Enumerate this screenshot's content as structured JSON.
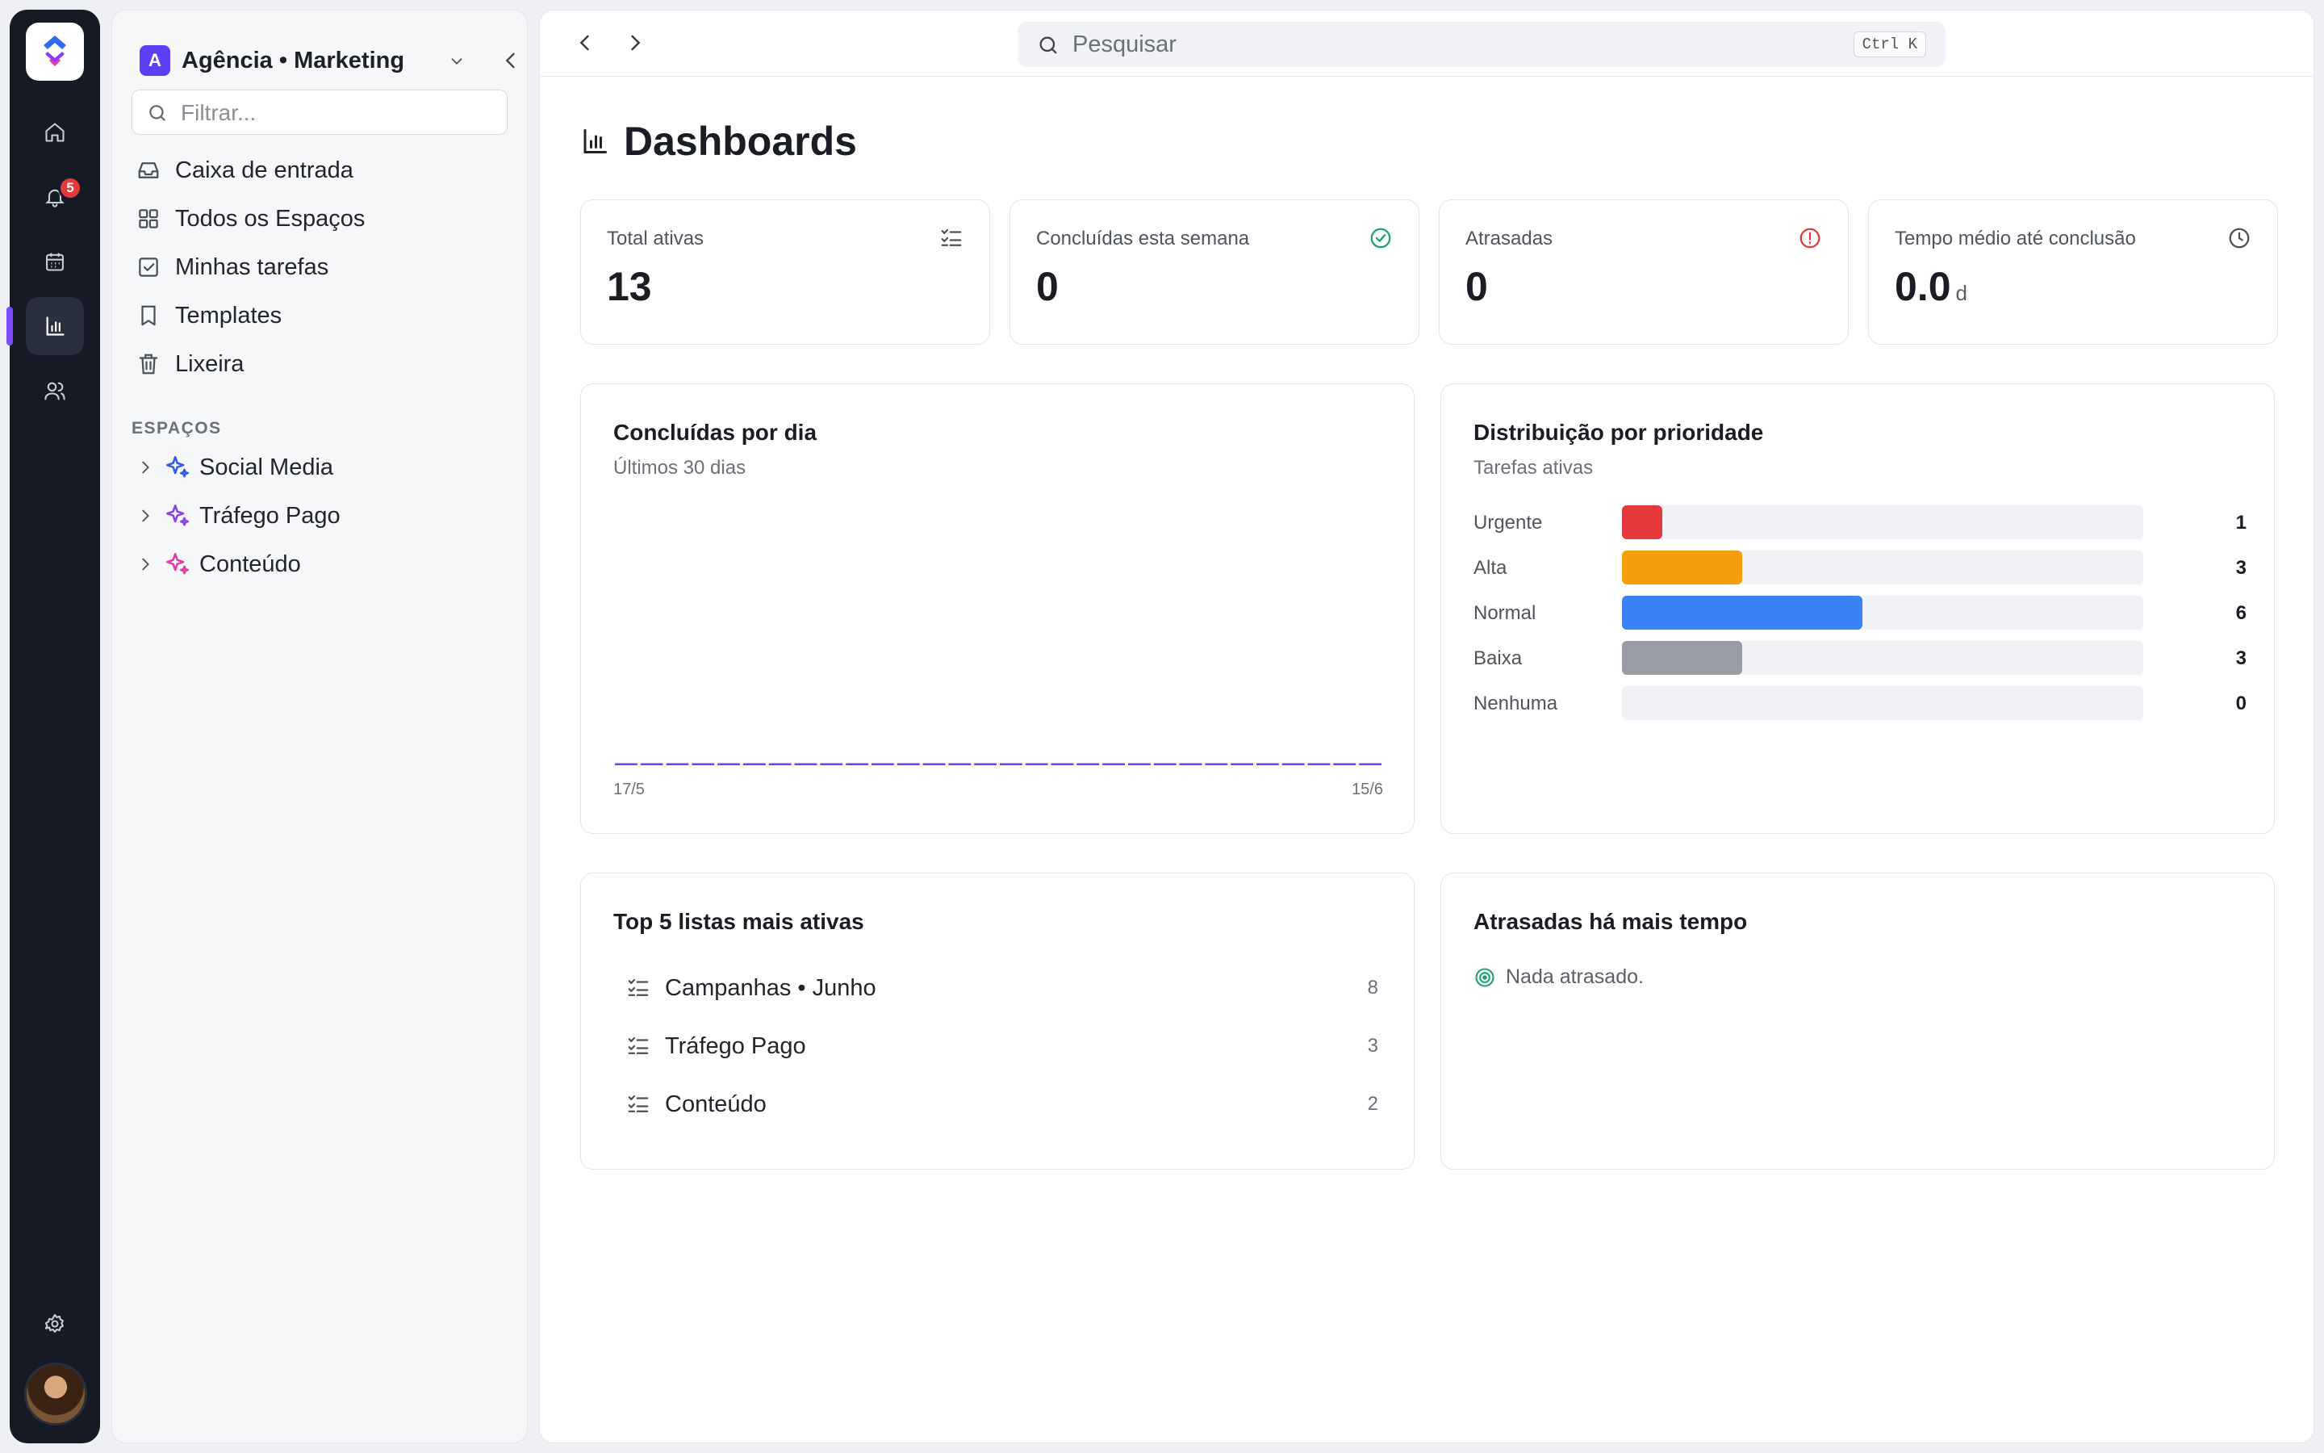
{
  "rail": {
    "notification_count": "5",
    "items": [
      {
        "icon": "home-icon"
      },
      {
        "icon": "bell-icon"
      },
      {
        "icon": "calendar-icon"
      },
      {
        "icon": "bar-chart-icon",
        "active": true
      },
      {
        "icon": "users-icon"
      }
    ]
  },
  "sidebar": {
    "workspace_initial": "A",
    "workspace_name": "Agência • Marketing",
    "filter_placeholder": "Filtrar...",
    "nav": [
      {
        "label": "Caixa de entrada",
        "icon": "inbox-icon"
      },
      {
        "label": "Todos os Espaços",
        "icon": "grid-icon"
      },
      {
        "label": "Minhas tarefas",
        "icon": "checkbox-icon"
      },
      {
        "label": "Templates",
        "icon": "bookmark-icon"
      },
      {
        "label": "Lixeira",
        "icon": "trash-icon"
      }
    ],
    "spaces_label": "ESPAÇOS",
    "spaces": [
      {
        "label": "Social Media",
        "color": "#2f5bea"
      },
      {
        "label": "Tráfego Pago",
        "color": "#8b3ff0"
      },
      {
        "label": "Conteúdo",
        "color": "#e43ba6"
      }
    ]
  },
  "topbar": {
    "search_placeholder": "Pesquisar",
    "shortcut": "Ctrl K"
  },
  "page": {
    "title": "Dashboards"
  },
  "stats": [
    {
      "label": "Total ativas",
      "value": "13",
      "unit": "",
      "icon": "list-check-icon",
      "color": "#4b4f58"
    },
    {
      "label": "Concluídas esta semana",
      "value": "0",
      "unit": "",
      "icon": "check-circle-icon",
      "color": "#1ba36a"
    },
    {
      "label": "Atrasadas",
      "value": "0",
      "unit": "",
      "icon": "alert-circle-icon",
      "color": "#e5383b"
    },
    {
      "label": "Tempo médio até conclusão",
      "value": "0.0",
      "unit": "d",
      "icon": "clock-icon",
      "color": "#4b4f58"
    }
  ],
  "completed_chart": {
    "title": "Concluídas por dia",
    "subtitle": "Últimos 30 dias",
    "x_start_label": "17/5",
    "x_end_label": "15/6",
    "line_color": "#7c3aed"
  },
  "chart_data": {
    "type": "bar",
    "title": "Concluídas por dia",
    "subtitle": "Últimos 30 dias",
    "x_tick_labels": [
      "17/5",
      "15/6"
    ],
    "days": 30,
    "values": [
      0,
      0,
      0,
      0,
      0,
      0,
      0,
      0,
      0,
      0,
      0,
      0,
      0,
      0,
      0,
      0,
      0,
      0,
      0,
      0,
      0,
      0,
      0,
      0,
      0,
      0,
      0,
      0,
      0,
      0
    ]
  },
  "priority": {
    "title": "Distribuição por prioridade",
    "subtitle": "Tarefas ativas",
    "max": 13,
    "rows": [
      {
        "label": "Urgente",
        "count": 1,
        "color": "#e5383b"
      },
      {
        "label": "Alta",
        "count": 3,
        "color": "#f59e0b"
      },
      {
        "label": "Normal",
        "count": 6,
        "color": "#3b82f6"
      },
      {
        "label": "Baixa",
        "count": 3,
        "color": "#9a9ca3"
      },
      {
        "label": "Nenhuma",
        "count": 0,
        "color": "#c8cad0"
      }
    ]
  },
  "top_lists": {
    "title": "Top 5 listas mais ativas",
    "rows": [
      {
        "name": "Campanhas • Junho",
        "count": "8"
      },
      {
        "name": "Tráfego Pago",
        "count": "3"
      },
      {
        "name": "Conteúdo",
        "count": "2"
      }
    ]
  },
  "overdue": {
    "title": "Atrasadas há mais tempo",
    "empty_text": "Nada atrasado."
  }
}
